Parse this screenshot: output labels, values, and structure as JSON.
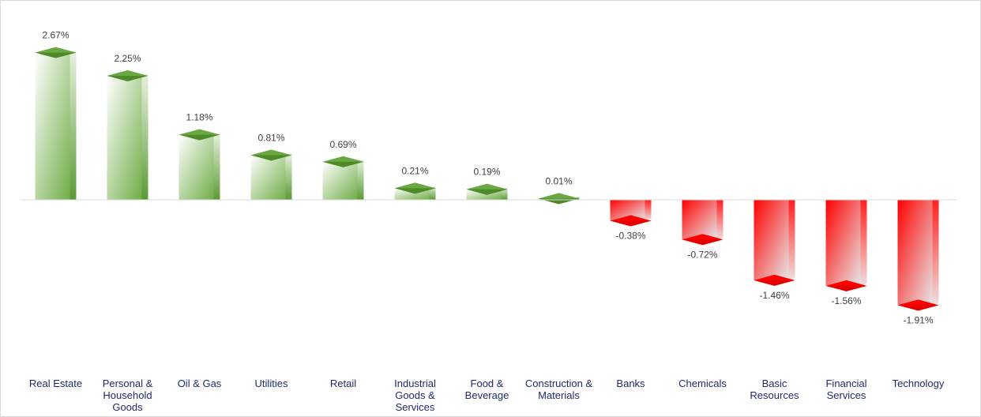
{
  "chart_data": {
    "type": "bar",
    "title": "",
    "xlabel": "",
    "ylabel": "",
    "ylim": [
      -2.5,
      2.67
    ],
    "grid": false,
    "legend": "none",
    "categories": [
      "Real Estate",
      "Personal & Household Goods",
      "Oil & Gas",
      "Utilities",
      "Retail",
      "Industrial Goods & Services",
      "Food & Beverage",
      "Construction & Materials",
      "Banks",
      "Chemicals",
      "Basic Resources",
      "Financial Services",
      "Technology"
    ],
    "category_labels": [
      "Real Estate",
      "Personal &\nHousehold\nGoods",
      "Oil & Gas",
      "Utilities",
      "Retail",
      "Industrial\nGoods &\nServices",
      "Food &\nBeverage",
      "Construction &\nMaterials",
      "Banks",
      "Chemicals",
      "Basic\nResources",
      "Financial\nServices",
      "Technology"
    ],
    "values": [
      2.67,
      2.25,
      1.18,
      0.81,
      0.69,
      0.21,
      0.19,
      0.01,
      -0.38,
      -0.72,
      -1.46,
      -1.56,
      -1.91
    ],
    "data_labels": [
      "2.67%",
      "2.25%",
      "1.18%",
      "0.81%",
      "0.69%",
      "0.21%",
      "0.19%",
      "0.01%",
      "-0.38%",
      "-0.72%",
      "-1.46%",
      "-1.56%",
      "-1.91%"
    ],
    "colors": {
      "positive": "#70ad47",
      "positive_dark": "#4e8a2a",
      "positive_light": "#ffffff",
      "negative": "#ff0000",
      "negative_dark": "#e00000",
      "negative_light": "#e7e6e6",
      "axis": "#d9d9d9",
      "label": "#404040",
      "category": "#1f2a6b"
    }
  }
}
